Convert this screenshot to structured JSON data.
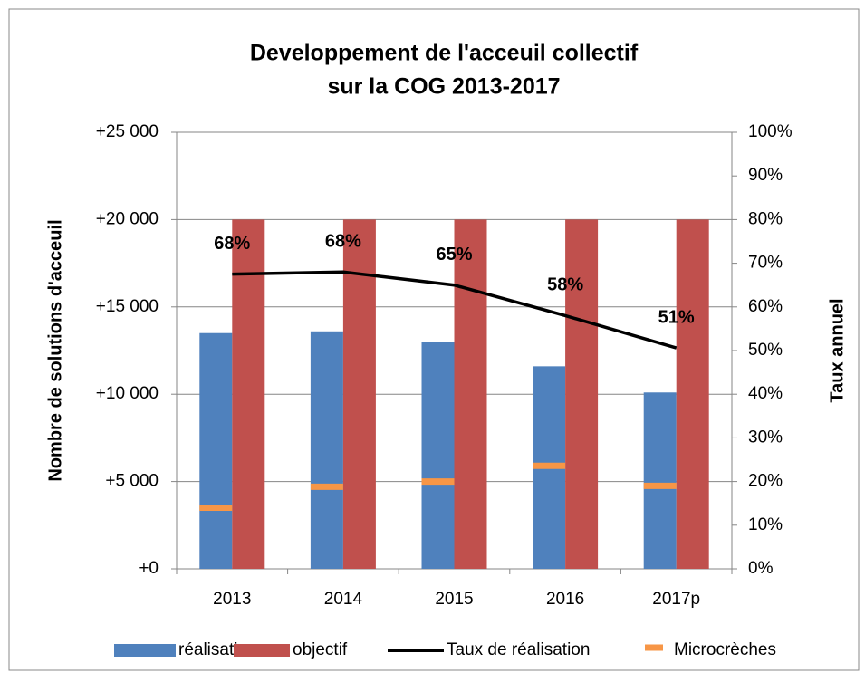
{
  "chart_data": {
    "type": "bar",
    "title": "Developpement de l'acceuil collectif",
    "subtitle": "sur la COG 2013-2017",
    "y_label": "Nombre de solutions d'acceuil",
    "y2_label": "Taux annuel",
    "categories": [
      "2013",
      "2014",
      "2015",
      "2016",
      "2017p"
    ],
    "series": [
      {
        "name": "réalisation",
        "type": "bar",
        "color": "#4f81bd",
        "values": [
          13500,
          13600,
          13000,
          11600,
          10100
        ]
      },
      {
        "name": "objectif",
        "type": "bar",
        "color": "#c0504d",
        "values": [
          20000,
          20000,
          20000,
          20000,
          20000
        ]
      },
      {
        "name": "Taux de réalisation",
        "type": "line",
        "axis": "y2",
        "color": "#000000",
        "values": [
          67.5,
          68,
          65,
          58,
          50.6
        ],
        "value_labels": [
          "68%",
          "68%",
          "65%",
          "58%",
          "51%"
        ]
      },
      {
        "name": "Microcrèches",
        "type": "marker",
        "color": "#f79646",
        "values": [
          3500,
          4700,
          5000,
          5900,
          4750
        ]
      }
    ],
    "ylim": [
      0,
      25000
    ],
    "yticks": [
      {
        "value": 0,
        "label": "+0"
      },
      {
        "value": 5000,
        "label": "+5 000"
      },
      {
        "value": 10000,
        "label": "+10 000"
      },
      {
        "value": 15000,
        "label": "+15 000"
      },
      {
        "value": 20000,
        "label": "+20 000"
      },
      {
        "value": 25000,
        "label": "+25 000"
      }
    ],
    "y2lim": [
      0,
      100
    ],
    "y2ticks": [
      {
        "value": 0,
        "label": "0%"
      },
      {
        "value": 10,
        "label": "10%"
      },
      {
        "value": 20,
        "label": "20%"
      },
      {
        "value": 30,
        "label": "30%"
      },
      {
        "value": 40,
        "label": "40%"
      },
      {
        "value": 50,
        "label": "50%"
      },
      {
        "value": 60,
        "label": "60%"
      },
      {
        "value": 70,
        "label": "70%"
      },
      {
        "value": 80,
        "label": "80%"
      },
      {
        "value": 90,
        "label": "90%"
      },
      {
        "value": 100,
        "label": "100%"
      }
    ],
    "grid": true,
    "legend": "bottom"
  }
}
